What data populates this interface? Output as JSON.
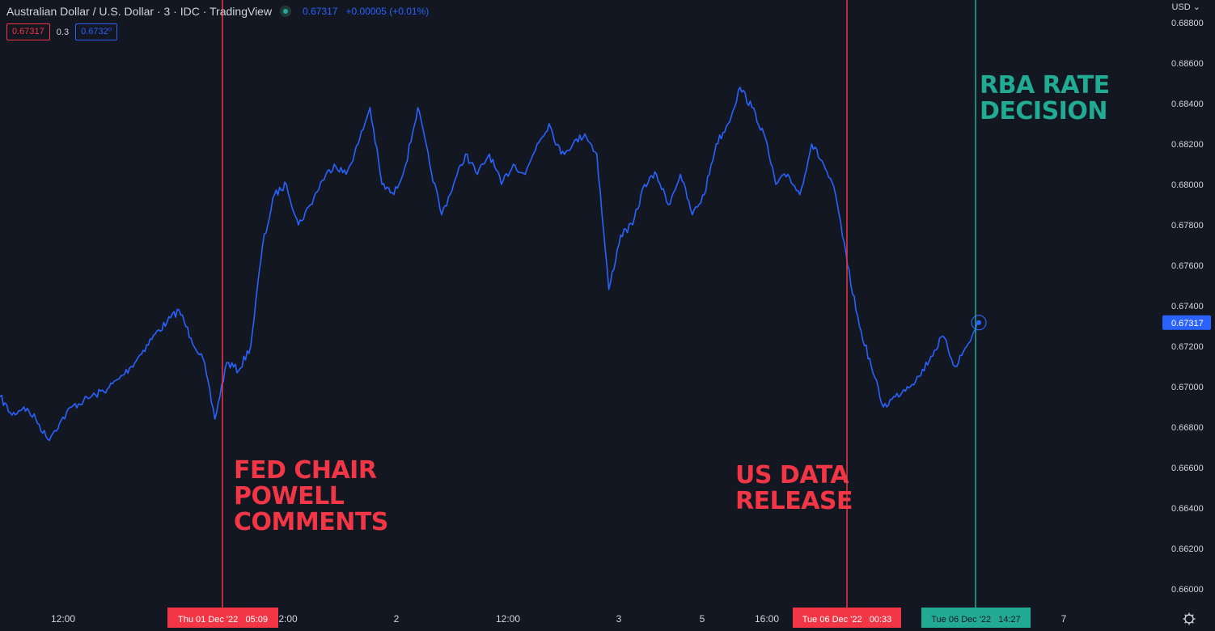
{
  "header": {
    "title": "Australian Dollar / U.S. Dollar · 3 · IDC · TradingView",
    "last_price": "0.67317",
    "change": "+0.00005 (+0.01%)"
  },
  "quote": {
    "sell": "0.67317",
    "spread": "0.3",
    "buy": "0.6732⁰"
  },
  "currency": "USD",
  "colors": {
    "background": "#131722",
    "series": "#2962ff",
    "event_red": "#f23645",
    "event_green": "#22ab94",
    "axis_text": "#d1d4dc"
  },
  "chart_data": {
    "type": "line",
    "series": [
      {
        "values": [
          0.6695,
          0.6686,
          0.669,
          0.6684,
          0.6674,
          0.6682,
          0.669,
          0.6693,
          0.6696,
          0.6699,
          0.6704,
          0.671,
          0.6718,
          0.6726,
          0.6732,
          0.6738,
          0.6724,
          0.6714,
          0.6684,
          0.6712,
          0.6708,
          0.672,
          0.677,
          0.6795,
          0.68,
          0.678,
          0.679,
          0.6802,
          0.681,
          0.6805,
          0.682,
          0.6838,
          0.68,
          0.6795,
          0.681,
          0.6838,
          0.681,
          0.6785,
          0.68,
          0.6815,
          0.6805,
          0.6815,
          0.68,
          0.681,
          0.6805,
          0.682,
          0.683,
          0.6815,
          0.682,
          0.6825,
          0.6815,
          0.6748,
          0.6775,
          0.678,
          0.68,
          0.6805,
          0.679,
          0.6805,
          0.6785,
          0.6795,
          0.682,
          0.683,
          0.6848,
          0.6838,
          0.6825,
          0.68,
          0.6805,
          0.6795,
          0.682,
          0.681,
          0.6795,
          0.676,
          0.673,
          0.671,
          0.669,
          0.6695,
          0.67,
          0.6705,
          0.6715,
          0.6725,
          0.671,
          0.672,
          0.67317
        ]
      }
    ],
    "x_tick_labels": [
      "12:00",
      "2:00",
      "2",
      "12:00",
      "3",
      "5",
      "16:00",
      "7"
    ],
    "y_tick_labels": [
      "0.68800",
      "0.68600",
      "0.68400",
      "0.68200",
      "0.68000",
      "0.67800",
      "0.67600",
      "0.67400",
      "0.67200",
      "0.67000",
      "0.66800",
      "0.66600",
      "0.66400",
      "0.66200",
      "0.66000"
    ],
    "ylim": [
      0.66,
      0.688
    ],
    "last_value_label": "0.67317",
    "events": [
      {
        "label_lines": [
          "FED CHAIR",
          "POWELL",
          "COMMENTS"
        ],
        "axis_label": "Thu 01 Dec '22   05:09",
        "color": "red"
      },
      {
        "label_lines": [
          "US DATA",
          "RELEASE"
        ],
        "axis_label": "Tue 06 Dec '22   00:33",
        "color": "red"
      },
      {
        "label_lines": [
          "RBA RATE",
          "DECISION"
        ],
        "axis_label": "Tue 06 Dec '22   14:27",
        "color": "green"
      }
    ]
  }
}
